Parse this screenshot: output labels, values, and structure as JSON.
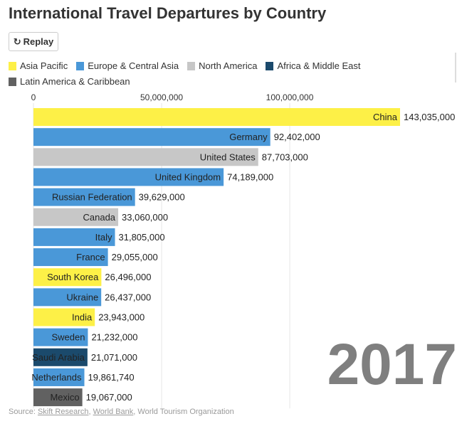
{
  "title": "International Travel Departures by Country",
  "replay_label": "Replay",
  "replay_icon": "replay-icon",
  "legend": [
    {
      "label": "Asia Pacific",
      "color": "#fdf047"
    },
    {
      "label": "Europe & Central Asia",
      "color": "#4a98d8"
    },
    {
      "label": "North America",
      "color": "#c7c7c7"
    },
    {
      "label": "Africa & Middle East",
      "color": "#1b4a6c"
    },
    {
      "label": "Latin America & Caribbean",
      "color": "#616161"
    }
  ],
  "year_label": "2017",
  "source": {
    "prefix": "Source: ",
    "link1": "Skift Research",
    "sep1": ", ",
    "link2": "World Bank",
    "suffix": ", World Tourism Organization"
  },
  "chart_data": {
    "type": "bar",
    "orientation": "horizontal",
    "title": "International Travel Departures by Country",
    "xlim": [
      0,
      143035000
    ],
    "x_ticks": [
      0,
      50000000,
      100000000
    ],
    "x_tick_labels": [
      "0",
      "50,000,000",
      "100,000,000"
    ],
    "grid": true,
    "legend_position": "top",
    "categories": [
      "China",
      "Germany",
      "United States",
      "United Kingdom",
      "Russian Federation",
      "Canada",
      "Italy",
      "France",
      "South Korea",
      "Ukraine",
      "India",
      "Sweden",
      "Saudi Arabia",
      "Netherlands",
      "Mexico"
    ],
    "values": [
      143035000,
      92402000,
      87703000,
      74189000,
      39629000,
      33060000,
      31805000,
      29055000,
      26496000,
      26437000,
      23943000,
      21232000,
      21071000,
      19861740,
      19067000
    ],
    "value_labels": [
      "143,035,000",
      "92,402,000",
      "87,703,000",
      "74,189,000",
      "39,629,000",
      "33,060,000",
      "31,805,000",
      "29,055,000",
      "26,496,000",
      "26,437,000",
      "23,943,000",
      "21,232,000",
      "21,071,000",
      "19,861,740",
      "19,067,000"
    ],
    "regions": [
      "Asia Pacific",
      "Europe & Central Asia",
      "North America",
      "Europe & Central Asia",
      "Europe & Central Asia",
      "North America",
      "Europe & Central Asia",
      "Europe & Central Asia",
      "Asia Pacific",
      "Europe & Central Asia",
      "Asia Pacific",
      "Europe & Central Asia",
      "Africa & Middle East",
      "Europe & Central Asia",
      "Latin America & Caribbean"
    ]
  }
}
